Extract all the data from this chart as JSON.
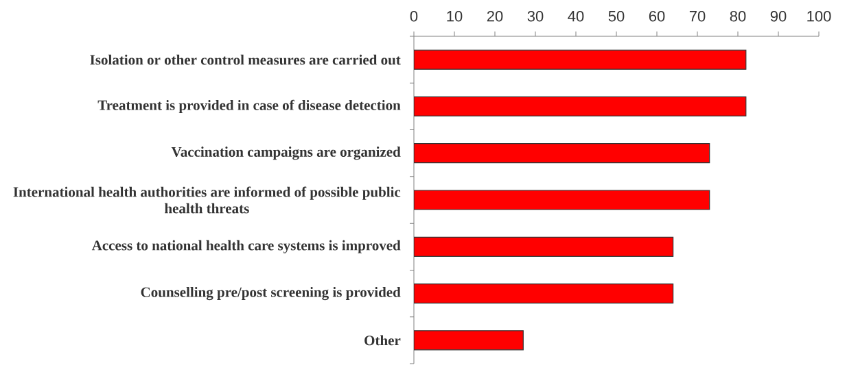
{
  "chart_data": {
    "type": "bar",
    "orientation": "horizontal",
    "categories": [
      "Isolation or other control measures are carried out",
      "Treatment is provided in case of disease detection",
      "Vaccination campaigns are organized",
      "International health authorities are informed of possible public health threats",
      "Access to national health care systems is improved",
      "Counselling pre/post screening is provided",
      "Other"
    ],
    "values": [
      82,
      82,
      73,
      73,
      64,
      64,
      27
    ],
    "color": "#ff0000",
    "xlim": [
      0,
      100
    ],
    "xticks": [
      0,
      10,
      20,
      30,
      40,
      50,
      60,
      70,
      80,
      90,
      100
    ]
  }
}
